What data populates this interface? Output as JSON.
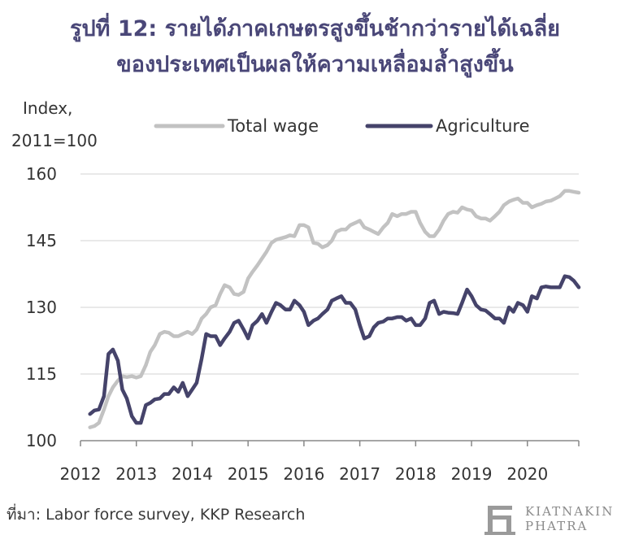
{
  "title": {
    "line1": "รูปที่ 12: รายได้ภาคเกษตรสูงขึ้นช้ากว่ารายได้เฉลี่ย",
    "line2": "ของประเทศเป็นผลให้ความเหลื่อมล้ำสูงขึ้น"
  },
  "source": "ที่มา: Labor force survey, KKP Research",
  "logo": {
    "line1": "KIATNAKIN",
    "line2": "PHATRA"
  },
  "chart_data": {
    "type": "line",
    "ylabel_lines": [
      "Index,",
      "2011=100"
    ],
    "ylim": [
      100,
      160
    ],
    "yticks": [
      100,
      115,
      130,
      145,
      160
    ],
    "xlim": [
      2012.0,
      2020.92
    ],
    "xticks": [
      "2012",
      "2013",
      "2014",
      "2015",
      "2016",
      "2017",
      "2018",
      "2019",
      "2020"
    ],
    "grid": "horizontal",
    "legend_position": "top",
    "series": [
      {
        "name": "Total wage",
        "color": "#c2c2c2",
        "points": [
          [
            2012.17,
            103
          ],
          [
            2012.25,
            103.3
          ],
          [
            2012.33,
            104
          ],
          [
            2012.42,
            107
          ],
          [
            2012.5,
            110
          ],
          [
            2012.58,
            112
          ],
          [
            2012.67,
            113.5
          ],
          [
            2012.75,
            114.5
          ],
          [
            2012.83,
            114.3
          ],
          [
            2012.92,
            114.5
          ],
          [
            2013.0,
            114.2
          ],
          [
            2013.08,
            114.5
          ],
          [
            2013.17,
            117
          ],
          [
            2013.25,
            120
          ],
          [
            2013.33,
            121.5
          ],
          [
            2013.42,
            124
          ],
          [
            2013.5,
            124.5
          ],
          [
            2013.58,
            124.3
          ],
          [
            2013.67,
            123.5
          ],
          [
            2013.75,
            123.5
          ],
          [
            2013.83,
            124
          ],
          [
            2013.92,
            124.5
          ],
          [
            2014.0,
            124
          ],
          [
            2014.08,
            125
          ],
          [
            2014.17,
            127.5
          ],
          [
            2014.25,
            128.5
          ],
          [
            2014.33,
            130
          ],
          [
            2014.42,
            130.5
          ],
          [
            2014.5,
            133
          ],
          [
            2014.58,
            135
          ],
          [
            2014.67,
            134.5
          ],
          [
            2014.75,
            133
          ],
          [
            2014.83,
            132.8
          ],
          [
            2014.92,
            133.5
          ],
          [
            2015.0,
            136.5
          ],
          [
            2015.08,
            138
          ],
          [
            2015.17,
            139.5
          ],
          [
            2015.25,
            141
          ],
          [
            2015.33,
            142.5
          ],
          [
            2015.42,
            144.5
          ],
          [
            2015.5,
            145.2
          ],
          [
            2015.58,
            145.5
          ],
          [
            2015.67,
            145.8
          ],
          [
            2015.75,
            146.2
          ],
          [
            2015.83,
            146
          ],
          [
            2015.92,
            148.5
          ],
          [
            2016.0,
            148.5
          ],
          [
            2016.08,
            148
          ],
          [
            2016.17,
            144.5
          ],
          [
            2016.25,
            144.3
          ],
          [
            2016.33,
            143.5
          ],
          [
            2016.42,
            144
          ],
          [
            2016.5,
            145
          ],
          [
            2016.58,
            147
          ],
          [
            2016.67,
            147.5
          ],
          [
            2016.75,
            147.5
          ],
          [
            2016.83,
            148.5
          ],
          [
            2016.92,
            149
          ],
          [
            2017.0,
            149.5
          ],
          [
            2017.08,
            148
          ],
          [
            2017.17,
            147.5
          ],
          [
            2017.25,
            147
          ],
          [
            2017.33,
            146.5
          ],
          [
            2017.42,
            148
          ],
          [
            2017.5,
            149
          ],
          [
            2017.58,
            151
          ],
          [
            2017.67,
            150.5
          ],
          [
            2017.75,
            151
          ],
          [
            2017.83,
            151
          ],
          [
            2017.92,
            151.5
          ],
          [
            2018.0,
            151.5
          ],
          [
            2018.08,
            149
          ],
          [
            2018.17,
            147
          ],
          [
            2018.25,
            146
          ],
          [
            2018.33,
            146
          ],
          [
            2018.42,
            147.5
          ],
          [
            2018.5,
            149.5
          ],
          [
            2018.58,
            151
          ],
          [
            2018.67,
            151.5
          ],
          [
            2018.75,
            151.3
          ],
          [
            2018.83,
            152.5
          ],
          [
            2018.92,
            152
          ],
          [
            2019.0,
            151.8
          ],
          [
            2019.08,
            150.5
          ],
          [
            2019.17,
            150
          ],
          [
            2019.25,
            150
          ],
          [
            2019.33,
            149.5
          ],
          [
            2019.42,
            150.5
          ],
          [
            2019.5,
            151.5
          ],
          [
            2019.58,
            153
          ],
          [
            2019.67,
            153.8
          ],
          [
            2019.75,
            154.2
          ],
          [
            2019.83,
            154.5
          ],
          [
            2019.92,
            153.5
          ],
          [
            2020.0,
            153.5
          ],
          [
            2020.08,
            152.5
          ],
          [
            2020.17,
            153
          ],
          [
            2020.25,
            153.3
          ],
          [
            2020.33,
            153.8
          ],
          [
            2020.42,
            154
          ],
          [
            2020.5,
            154.5
          ],
          [
            2020.58,
            155
          ],
          [
            2020.67,
            156.2
          ],
          [
            2020.75,
            156.2
          ],
          [
            2020.83,
            156
          ],
          [
            2020.92,
            155.8
          ]
        ]
      },
      {
        "name": "Agriculture",
        "color": "#45436a",
        "points": [
          [
            2012.17,
            106
          ],
          [
            2012.25,
            106.8
          ],
          [
            2012.33,
            107
          ],
          [
            2012.42,
            110
          ],
          [
            2012.5,
            119.5
          ],
          [
            2012.58,
            120.5
          ],
          [
            2012.67,
            118
          ],
          [
            2012.75,
            111.5
          ],
          [
            2012.83,
            109.5
          ],
          [
            2012.92,
            105.5
          ],
          [
            2013.0,
            104
          ],
          [
            2013.08,
            104
          ],
          [
            2013.17,
            108
          ],
          [
            2013.25,
            108.5
          ],
          [
            2013.33,
            109.3
          ],
          [
            2013.42,
            109.5
          ],
          [
            2013.5,
            110.5
          ],
          [
            2013.58,
            110.5
          ],
          [
            2013.67,
            112
          ],
          [
            2013.75,
            111
          ],
          [
            2013.83,
            113
          ],
          [
            2013.92,
            110
          ],
          [
            2014.0,
            111.5
          ],
          [
            2014.08,
            113
          ],
          [
            2014.17,
            118.5
          ],
          [
            2014.25,
            124
          ],
          [
            2014.33,
            123.5
          ],
          [
            2014.42,
            123.5
          ],
          [
            2014.5,
            121.5
          ],
          [
            2014.58,
            123
          ],
          [
            2014.67,
            124.5
          ],
          [
            2014.75,
            126.5
          ],
          [
            2014.83,
            127
          ],
          [
            2014.92,
            125
          ],
          [
            2015.0,
            123
          ],
          [
            2015.08,
            126
          ],
          [
            2015.17,
            127
          ],
          [
            2015.25,
            128.5
          ],
          [
            2015.33,
            126.5
          ],
          [
            2015.42,
            129
          ],
          [
            2015.5,
            131
          ],
          [
            2015.58,
            130.5
          ],
          [
            2015.67,
            129.5
          ],
          [
            2015.75,
            129.5
          ],
          [
            2015.83,
            131.5
          ],
          [
            2015.92,
            130.5
          ],
          [
            2016.0,
            129
          ],
          [
            2016.08,
            126
          ],
          [
            2016.17,
            127
          ],
          [
            2016.25,
            127.5
          ],
          [
            2016.33,
            128.5
          ],
          [
            2016.42,
            129.5
          ],
          [
            2016.5,
            131.5
          ],
          [
            2016.58,
            132
          ],
          [
            2016.67,
            132.5
          ],
          [
            2016.75,
            131
          ],
          [
            2016.83,
            131
          ],
          [
            2016.92,
            129.5
          ],
          [
            2017.0,
            126
          ],
          [
            2017.08,
            123
          ],
          [
            2017.17,
            123.5
          ],
          [
            2017.25,
            125.5
          ],
          [
            2017.33,
            126.5
          ],
          [
            2017.42,
            126.8
          ],
          [
            2017.5,
            127.5
          ],
          [
            2017.58,
            127.5
          ],
          [
            2017.67,
            127.8
          ],
          [
            2017.75,
            127.8
          ],
          [
            2017.83,
            127
          ],
          [
            2017.92,
            127.5
          ],
          [
            2018.0,
            126
          ],
          [
            2018.08,
            126
          ],
          [
            2018.17,
            127.5
          ],
          [
            2018.25,
            131
          ],
          [
            2018.33,
            131.5
          ],
          [
            2018.42,
            128.5
          ],
          [
            2018.5,
            129
          ],
          [
            2018.58,
            128.8
          ],
          [
            2018.67,
            128.7
          ],
          [
            2018.75,
            128.5
          ],
          [
            2018.83,
            131
          ],
          [
            2018.92,
            134
          ],
          [
            2019.0,
            132.5
          ],
          [
            2019.08,
            130.5
          ],
          [
            2019.17,
            129.5
          ],
          [
            2019.25,
            129.3
          ],
          [
            2019.33,
            128.5
          ],
          [
            2019.42,
            127.5
          ],
          [
            2019.5,
            127.5
          ],
          [
            2019.58,
            126.5
          ],
          [
            2019.67,
            130
          ],
          [
            2019.75,
            129
          ],
          [
            2019.83,
            131
          ],
          [
            2019.92,
            130.5
          ],
          [
            2020.0,
            129
          ],
          [
            2020.08,
            132.5
          ],
          [
            2020.17,
            132
          ],
          [
            2020.25,
            134.5
          ],
          [
            2020.33,
            134.7
          ],
          [
            2020.42,
            134.5
          ],
          [
            2020.5,
            134.5
          ],
          [
            2020.58,
            134.5
          ],
          [
            2020.67,
            137
          ],
          [
            2020.75,
            136.8
          ],
          [
            2020.83,
            136
          ],
          [
            2020.92,
            134.5
          ]
        ]
      }
    ]
  }
}
